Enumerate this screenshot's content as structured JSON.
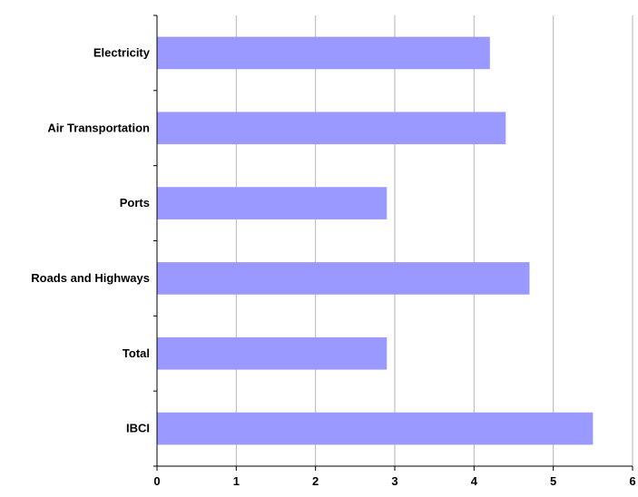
{
  "chart_data": {
    "type": "bar",
    "orientation": "horizontal",
    "title": "",
    "xlabel": "",
    "ylabel": "",
    "categories": [
      "Electricity",
      "Air Transportation",
      "Ports",
      "Roads and Highways",
      "Total",
      "IBCI"
    ],
    "values": [
      4.2,
      4.4,
      2.9,
      4.7,
      2.9,
      5.5
    ],
    "xlim": [
      0,
      6
    ],
    "x_ticks": [
      "0",
      "1",
      "2",
      "3",
      "4",
      "5",
      "6"
    ],
    "grid": "vertical",
    "legend": "none",
    "colors": {
      "bar": "#9999ff",
      "grid": "#b3b3b3",
      "axis": "#000000"
    }
  }
}
